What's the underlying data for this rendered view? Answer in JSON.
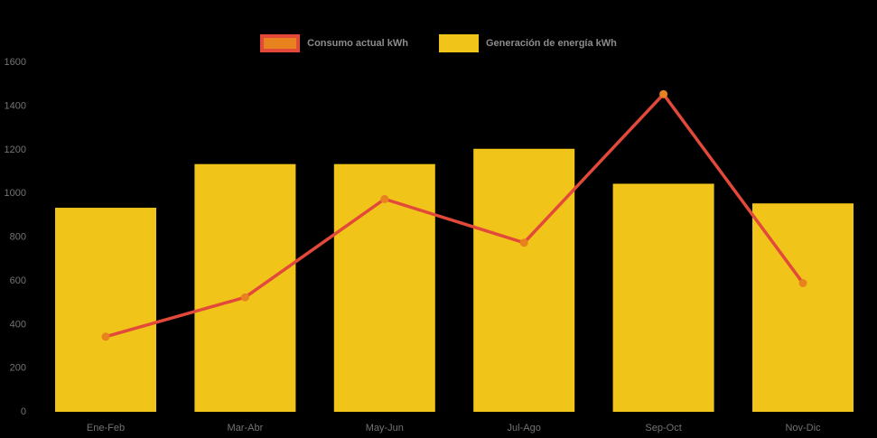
{
  "background_color": "#000000",
  "legend": {
    "items": [
      {
        "label": "Consumo actual kWh",
        "swatch_fill": "#E8821E",
        "swatch_border": "#E2493B"
      },
      {
        "label": "Generación de energía kWh",
        "swatch_fill": "#F0C419",
        "swatch_border": "#F0C419"
      }
    ],
    "text_color": "#8c8c8c",
    "position": "top-center"
  },
  "chart_data": {
    "type": "bar",
    "title": "",
    "xlabel": "",
    "ylabel": "",
    "categories": [
      "Ene-Feb",
      "Mar-Abr",
      "May-Jun",
      "Jul-Ago",
      "Sep-Oct",
      "Nov-Dic"
    ],
    "series": [
      {
        "name": "Generación de energía kWh",
        "type": "bar",
        "color": "#F0C419",
        "values": [
          930,
          1130,
          1130,
          1200,
          1040,
          950
        ]
      },
      {
        "name": "Consumo actual kWh",
        "type": "line",
        "color": "#E2493B",
        "marker_color": "#E8821E",
        "values": [
          340,
          520,
          970,
          770,
          1450,
          585
        ]
      }
    ],
    "ylim": [
      0,
      1600
    ],
    "yticks": [
      0,
      200,
      400,
      600,
      800,
      1000,
      1200,
      1400,
      1600
    ],
    "grid": false,
    "legend_position": "top",
    "axis_text_color": "#737373"
  }
}
